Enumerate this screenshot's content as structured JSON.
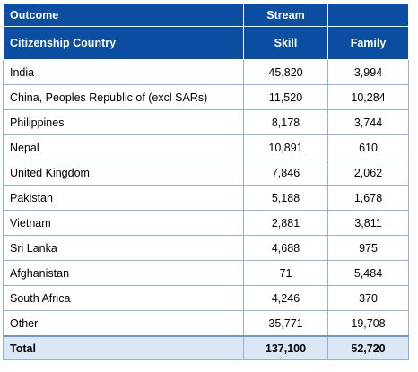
{
  "table": {
    "header_row1": {
      "col1": "Outcome",
      "col2": "Stream",
      "col3": ""
    },
    "header_row2": {
      "col1": "Citizenship Country",
      "col2": "Skill",
      "col3": "Family"
    },
    "rows": [
      {
        "country": "India",
        "skill": "45,820",
        "family": "3,994"
      },
      {
        "country": "China, Peoples Republic of (excl SARs)",
        "skill": "11,520",
        "family": "10,284"
      },
      {
        "country": "Philippines",
        "skill": "8,178",
        "family": "3,744"
      },
      {
        "country": "Nepal",
        "skill": "10,891",
        "family": "610"
      },
      {
        "country": "United Kingdom",
        "skill": "7,846",
        "family": "2,062"
      },
      {
        "country": "Pakistan",
        "skill": "5,188",
        "family": "1,678"
      },
      {
        "country": "Vietnam",
        "skill": "2,881",
        "family": "3,811"
      },
      {
        "country": "Sri Lanka",
        "skill": "4,688",
        "family": "975"
      },
      {
        "country": "Afghanistan",
        "skill": "71",
        "family": "5,484"
      },
      {
        "country": "South Africa",
        "skill": "4,246",
        "family": "370"
      },
      {
        "country": "Other",
        "skill": "35,771",
        "family": "19,708"
      }
    ],
    "total": {
      "label": "Total",
      "skill": "137,100",
      "family": "52,720"
    },
    "colors": {
      "header_bg": "#0b4ea2",
      "total_bg": "#dbe7f5",
      "grid": "#8fb3de"
    }
  }
}
